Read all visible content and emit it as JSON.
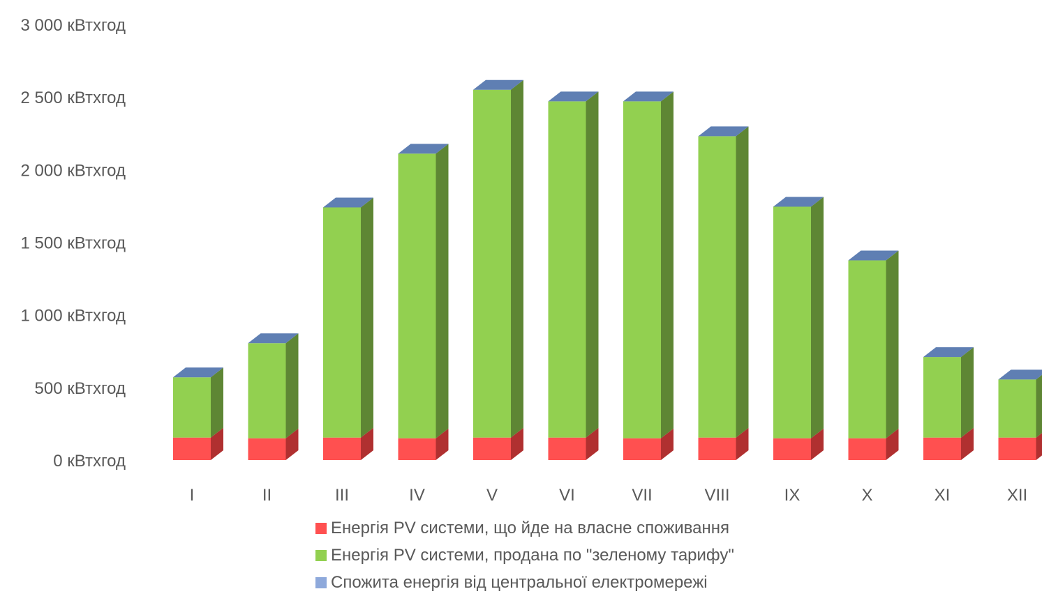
{
  "chart_data": {
    "type": "bar",
    "stacked": true,
    "three_d": true,
    "unit": "кВтхгод",
    "categories": [
      "I",
      "II",
      "III",
      "IV",
      "V",
      "VI",
      "VII",
      "VIII",
      "IX",
      "X",
      "XI",
      "XII"
    ],
    "y_ticks": [
      "0 кВтхгод",
      "500 кВтхгод",
      "1 000 кВтхгод",
      "1 500 кВтхгод",
      "2 000 кВтхгод",
      "2 500 кВтхгод",
      "3 000 кВтхгод"
    ],
    "ylim": [
      0,
      3000
    ],
    "grid": false,
    "legend_position": "bottom",
    "series": [
      {
        "name": "Енергія PV системи, що йде на власне споживання",
        "color": "#FF5050",
        "side_color": "#B03030",
        "values": [
          155,
          150,
          155,
          150,
          155,
          155,
          150,
          155,
          150,
          150,
          155,
          155
        ]
      },
      {
        "name": "Енергія PV системи, продана по \"зеленому тарифу\"",
        "color": "#92D050",
        "side_color": "#5E8634",
        "values": [
          415,
          655,
          1585,
          1960,
          2395,
          2315,
          2320,
          2075,
          1595,
          1225,
          555,
          400
        ]
      },
      {
        "name": "Спожита енергія від центральної електромережі",
        "color": "#8EA9DB",
        "side_color": "#5F7FB3",
        "values": [
          0,
          0,
          0,
          0,
          0,
          0,
          0,
          0,
          0,
          0,
          0,
          0
        ]
      }
    ]
  }
}
